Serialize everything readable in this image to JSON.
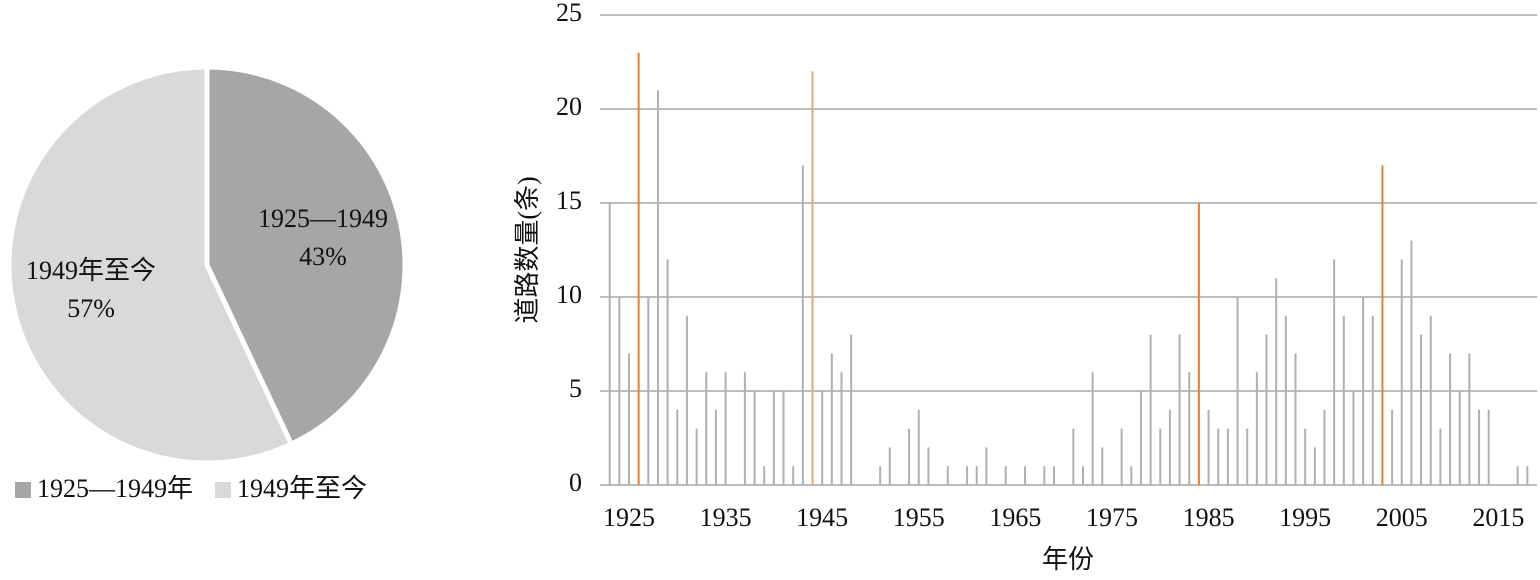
{
  "chart_data": [
    {
      "type": "pie",
      "categories": [
        "1925—1949年",
        "1949年至今"
      ],
      "slice_labels": [
        "1925—1949",
        "1949年至今"
      ],
      "values": [
        43,
        57
      ],
      "value_labels": [
        "43%",
        "57%"
      ],
      "colors": [
        "#a6a6a6",
        "#d9d9d9"
      ],
      "legend": "bottom"
    },
    {
      "type": "bar",
      "x_label": "年份",
      "y_label": "道路数量(条)",
      "x": [
        1923,
        1924,
        1925,
        1926,
        1927,
        1928,
        1929,
        1930,
        1931,
        1932,
        1933,
        1934,
        1935,
        1937,
        1938,
        1939,
        1940,
        1941,
        1942,
        1943,
        1944,
        1945,
        1946,
        1947,
        1948,
        1951,
        1952,
        1954,
        1955,
        1956,
        1958,
        1960,
        1961,
        1962,
        1964,
        1966,
        1968,
        1969,
        1971,
        1972,
        1973,
        1974,
        1976,
        1977,
        1978,
        1979,
        1980,
        1981,
        1982,
        1983,
        1984,
        1985,
        1986,
        1987,
        1988,
        1989,
        1990,
        1991,
        1992,
        1993,
        1994,
        1995,
        1996,
        1997,
        1998,
        1999,
        2000,
        2001,
        2002,
        2003,
        2004,
        2005,
        2006,
        2007,
        2008,
        2009,
        2010,
        2011,
        2012,
        2013,
        2014,
        2017,
        2018
      ],
      "values": [
        15,
        10,
        7,
        23,
        10,
        21,
        12,
        4,
        9,
        3,
        6,
        4,
        6,
        6,
        5,
        1,
        5,
        5,
        1,
        17,
        22,
        5,
        7,
        6,
        8,
        1,
        2,
        3,
        4,
        2,
        1,
        1,
        1,
        2,
        1,
        1,
        1,
        1,
        3,
        1,
        6,
        2,
        3,
        1,
        5,
        8,
        3,
        4,
        8,
        6,
        15,
        4,
        3,
        3,
        10,
        3,
        6,
        8,
        11,
        9,
        7,
        3,
        2,
        4,
        12,
        9,
        5,
        10,
        9,
        17,
        4,
        12,
        13,
        8,
        9,
        3,
        7,
        5,
        7,
        4,
        4,
        1,
        1
      ],
      "colors": [
        "#b0b0b0",
        "#b0b0b0",
        "#b0b0b0",
        "#ed7d31",
        "#b0b0b0",
        "#b0b0b0",
        "#b0b0b0",
        "#b0b0b0",
        "#b0b0b0",
        "#b0b0b0",
        "#b0b0b0",
        "#b0b0b0",
        "#b0b0b0",
        "#b0b0b0",
        "#b0b0b0",
        "#b0b0b0",
        "#b0b0b0",
        "#b0b0b0",
        "#b0b0b0",
        "#b0b0b0",
        "#f4a460",
        "#b0b0b0",
        "#b0b0b0",
        "#b0b0b0",
        "#b0b0b0",
        "#b0b0b0",
        "#b0b0b0",
        "#b0b0b0",
        "#b0b0b0",
        "#b0b0b0",
        "#b0b0b0",
        "#b0b0b0",
        "#b0b0b0",
        "#b0b0b0",
        "#b0b0b0",
        "#b0b0b0",
        "#b0b0b0",
        "#b0b0b0",
        "#b0b0b0",
        "#b0b0b0",
        "#b0b0b0",
        "#b0b0b0",
        "#b0b0b0",
        "#b0b0b0",
        "#b0b0b0",
        "#b0b0b0",
        "#b0b0b0",
        "#b0b0b0",
        "#b0b0b0",
        "#b0b0b0",
        "#ed7d31",
        "#b0b0b0",
        "#b0b0b0",
        "#b0b0b0",
        "#b0b0b0",
        "#b0b0b0",
        "#b0b0b0",
        "#b0b0b0",
        "#b0b0b0",
        "#b0b0b0",
        "#b0b0b0",
        "#b0b0b0",
        "#b0b0b0",
        "#b0b0b0",
        "#b0b0b0",
        "#b0b0b0",
        "#b0b0b0",
        "#b0b0b0",
        "#b0b0b0",
        "#ed7d31",
        "#b0b0b0",
        "#b0b0b0",
        "#b0b0b0",
        "#b0b0b0",
        "#b0b0b0",
        "#b0b0b0",
        "#b0b0b0",
        "#b0b0b0",
        "#b0b0b0",
        "#b0b0b0",
        "#b0b0b0",
        "#b0b0b0",
        "#b0b0b0"
      ],
      "xlim": [
        1922,
        2019
      ],
      "xticks": [
        1925,
        1935,
        1945,
        1955,
        1965,
        1975,
        1985,
        1995,
        2005,
        2015
      ],
      "ylim": [
        0,
        25
      ],
      "yticks": [
        0,
        5,
        10,
        15,
        20,
        25
      ],
      "grid": true
    }
  ]
}
